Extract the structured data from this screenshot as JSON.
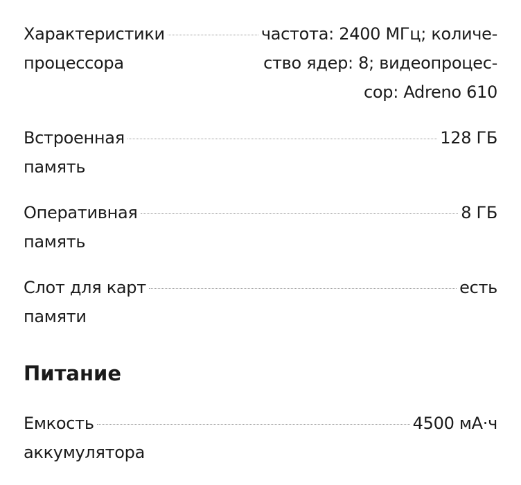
{
  "specs_top": [
    {
      "label_lines": [
        "Характеристики",
        "процессора"
      ],
      "value_lines": [
        "частота: 2400 МГц; количе-",
        "ство ядер: 8; видеопроцес-",
        "сор: Adreno 610"
      ]
    },
    {
      "label_lines": [
        "Встроенная",
        "память"
      ],
      "value_lines": [
        "128 ГБ"
      ]
    },
    {
      "label_lines": [
        "Оперативная",
        "память"
      ],
      "value_lines": [
        "8 ГБ"
      ]
    },
    {
      "label_lines": [
        "Слот для карт",
        "памяти"
      ],
      "value_lines": [
        "есть"
      ]
    }
  ],
  "section_power": {
    "title": "Питание",
    "specs": [
      {
        "label_lines": [
          "Емкость",
          "аккумулятора"
        ],
        "value_lines": [
          "4500 мА·ч"
        ]
      }
    ]
  }
}
